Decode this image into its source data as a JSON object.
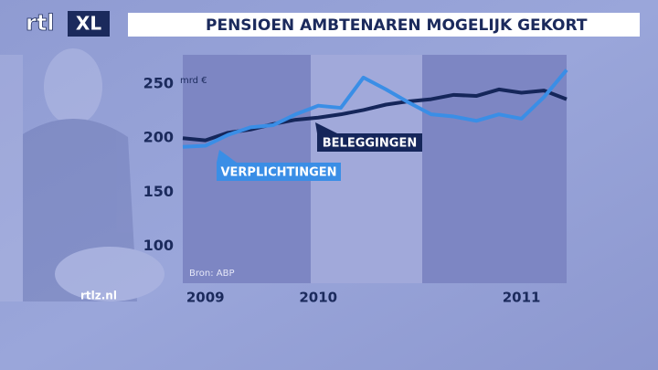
{
  "logo": {
    "rtl": "rtl",
    "xl": "XL"
  },
  "site": "rtlz.nl",
  "chart_data": {
    "type": "line",
    "title": "PENSIOEN AMBTENAREN MOGELIJK GEKORT",
    "y_label": "mrd €",
    "source": "Bron: ABP",
    "categories": [
      null,
      "2009",
      null,
      null,
      null,
      null,
      "2010",
      null,
      null,
      null,
      null,
      null,
      null,
      null,
      null,
      "2011",
      null,
      null
    ],
    "series": [
      {
        "name": "BELEGGINGEN",
        "color": "#15265a",
        "values": [
          200,
          198,
          205,
          208,
          213,
          217,
          219,
          222,
          226,
          231,
          234,
          236,
          240,
          239,
          245,
          242,
          244,
          236
        ]
      },
      {
        "name": "VERPLICHTINGEN",
        "color": "#3a8ee6",
        "values": [
          192,
          193,
          203,
          210,
          212,
          222,
          230,
          228,
          256,
          245,
          233,
          222,
          220,
          216,
          222,
          218,
          238,
          263
        ]
      }
    ],
    "ylim": [
      66,
      277
    ],
    "yticks": [
      100,
      150,
      200,
      250
    ],
    "grid": false
  }
}
